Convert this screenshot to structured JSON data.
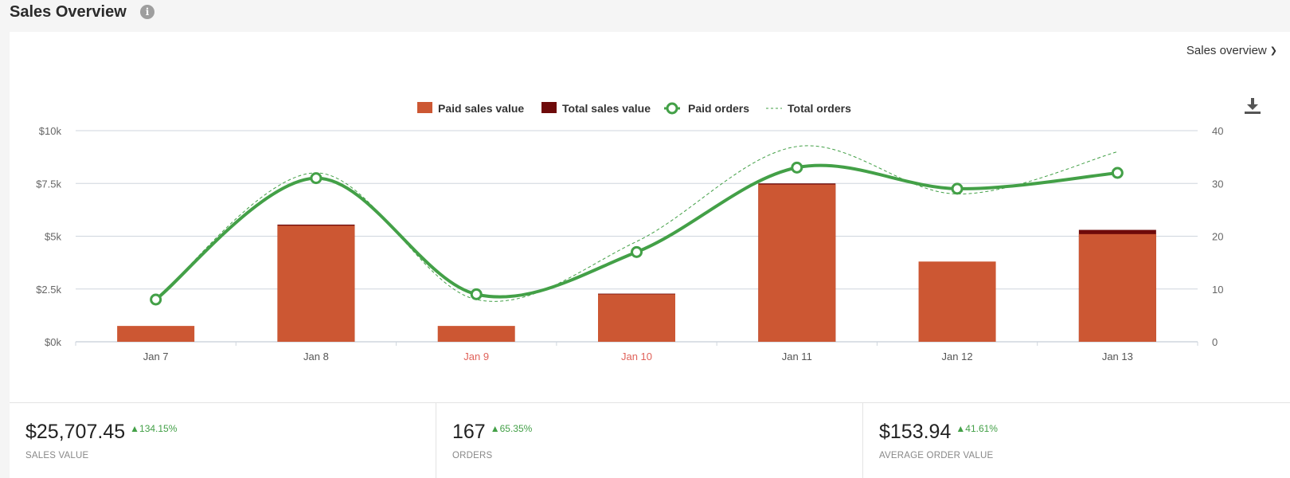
{
  "page": {
    "title": "Sales Overview"
  },
  "controls": {
    "dropdown_label": "Sales overview"
  },
  "colors": {
    "paid_sales": "#cc5733",
    "total_sales": "#6e0a0a",
    "orders_line": "#43a047",
    "weekend_tick": "#e0625a",
    "grid": "#cfd6dd"
  },
  "icons": {
    "info": "info-icon",
    "download": "download-icon",
    "dropdown": "chevron-down-icon"
  },
  "chart_data": {
    "type": "bar",
    "categories": [
      "Jan 7",
      "Jan 8",
      "Jan 9",
      "Jan 10",
      "Jan 11",
      "Jan 12",
      "Jan 13"
    ],
    "weekend_categories": [
      "Jan 9",
      "Jan 10"
    ],
    "legend": {
      "paid_sales": "Paid sales value",
      "total_sales": "Total sales value",
      "paid_orders": "Paid orders",
      "total_orders": "Total orders"
    },
    "legend_position": "top-center",
    "series": [
      {
        "name": "Paid sales value",
        "type": "bar",
        "axis": "left",
        "values": [
          750,
          5500,
          750,
          2250,
          7450,
          3800,
          5100
        ]
      },
      {
        "name": "Total sales value",
        "type": "bar",
        "axis": "left",
        "values": [
          750,
          5550,
          750,
          2280,
          7500,
          3800,
          5300
        ]
      },
      {
        "name": "Paid orders",
        "type": "line",
        "axis": "right",
        "values": [
          8,
          31,
          9,
          17,
          33,
          29,
          32
        ]
      },
      {
        "name": "Total orders",
        "type": "line-dashed",
        "axis": "right",
        "values": [
          8,
          32,
          8,
          19,
          37,
          28,
          36
        ]
      }
    ],
    "left_axis": {
      "ticks": [
        "$0k",
        "$2.5k",
        "$5k",
        "$7.5k",
        "$10k"
      ],
      "ylim": [
        0,
        10000
      ]
    },
    "right_axis": {
      "ticks": [
        "0",
        "10",
        "20",
        "30",
        "40"
      ],
      "ylim": [
        0,
        40
      ]
    },
    "grid": true
  },
  "stats": [
    {
      "value": "$25,707.45",
      "change": "134.15%",
      "label": "SALES VALUE"
    },
    {
      "value": "167",
      "change": "65.35%",
      "label": "ORDERS"
    },
    {
      "value": "$153.94",
      "change": "41.61%",
      "label": "AVERAGE ORDER VALUE"
    }
  ]
}
